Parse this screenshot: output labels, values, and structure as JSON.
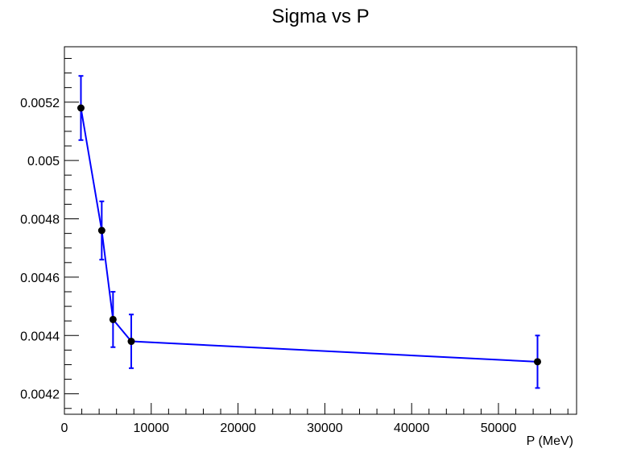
{
  "chart_data": {
    "type": "scatter",
    "title": "Sigma vs P",
    "xlabel": "P (MeV)",
    "ylabel": "",
    "xlim": [
      0,
      59000
    ],
    "ylim": [
      0.00413,
      0.00539
    ],
    "x_ticks": [
      0,
      10000,
      20000,
      30000,
      40000,
      50000
    ],
    "x_tick_labels": [
      "0",
      "10000",
      "20000",
      "30000",
      "40000",
      "50000"
    ],
    "y_ticks": [
      0.0042,
      0.0044,
      0.0046,
      0.0048,
      0.005,
      0.0052
    ],
    "y_tick_labels": [
      "0.0042",
      "0.0044",
      "0.0046",
      "0.0048",
      "0.005",
      "0.0052"
    ],
    "grid": false,
    "legend": "none",
    "series": [
      {
        "x": [
          1900,
          4300,
          5600,
          7700,
          54500
        ],
        "y": [
          0.00518,
          0.00476,
          0.004455,
          0.00438,
          0.00431
        ],
        "err": [
          0.00011,
          0.0001,
          9.5e-05,
          9.2e-05,
          9e-05
        ],
        "line_color": "#0000ff",
        "marker_color": "#000000"
      }
    ]
  }
}
